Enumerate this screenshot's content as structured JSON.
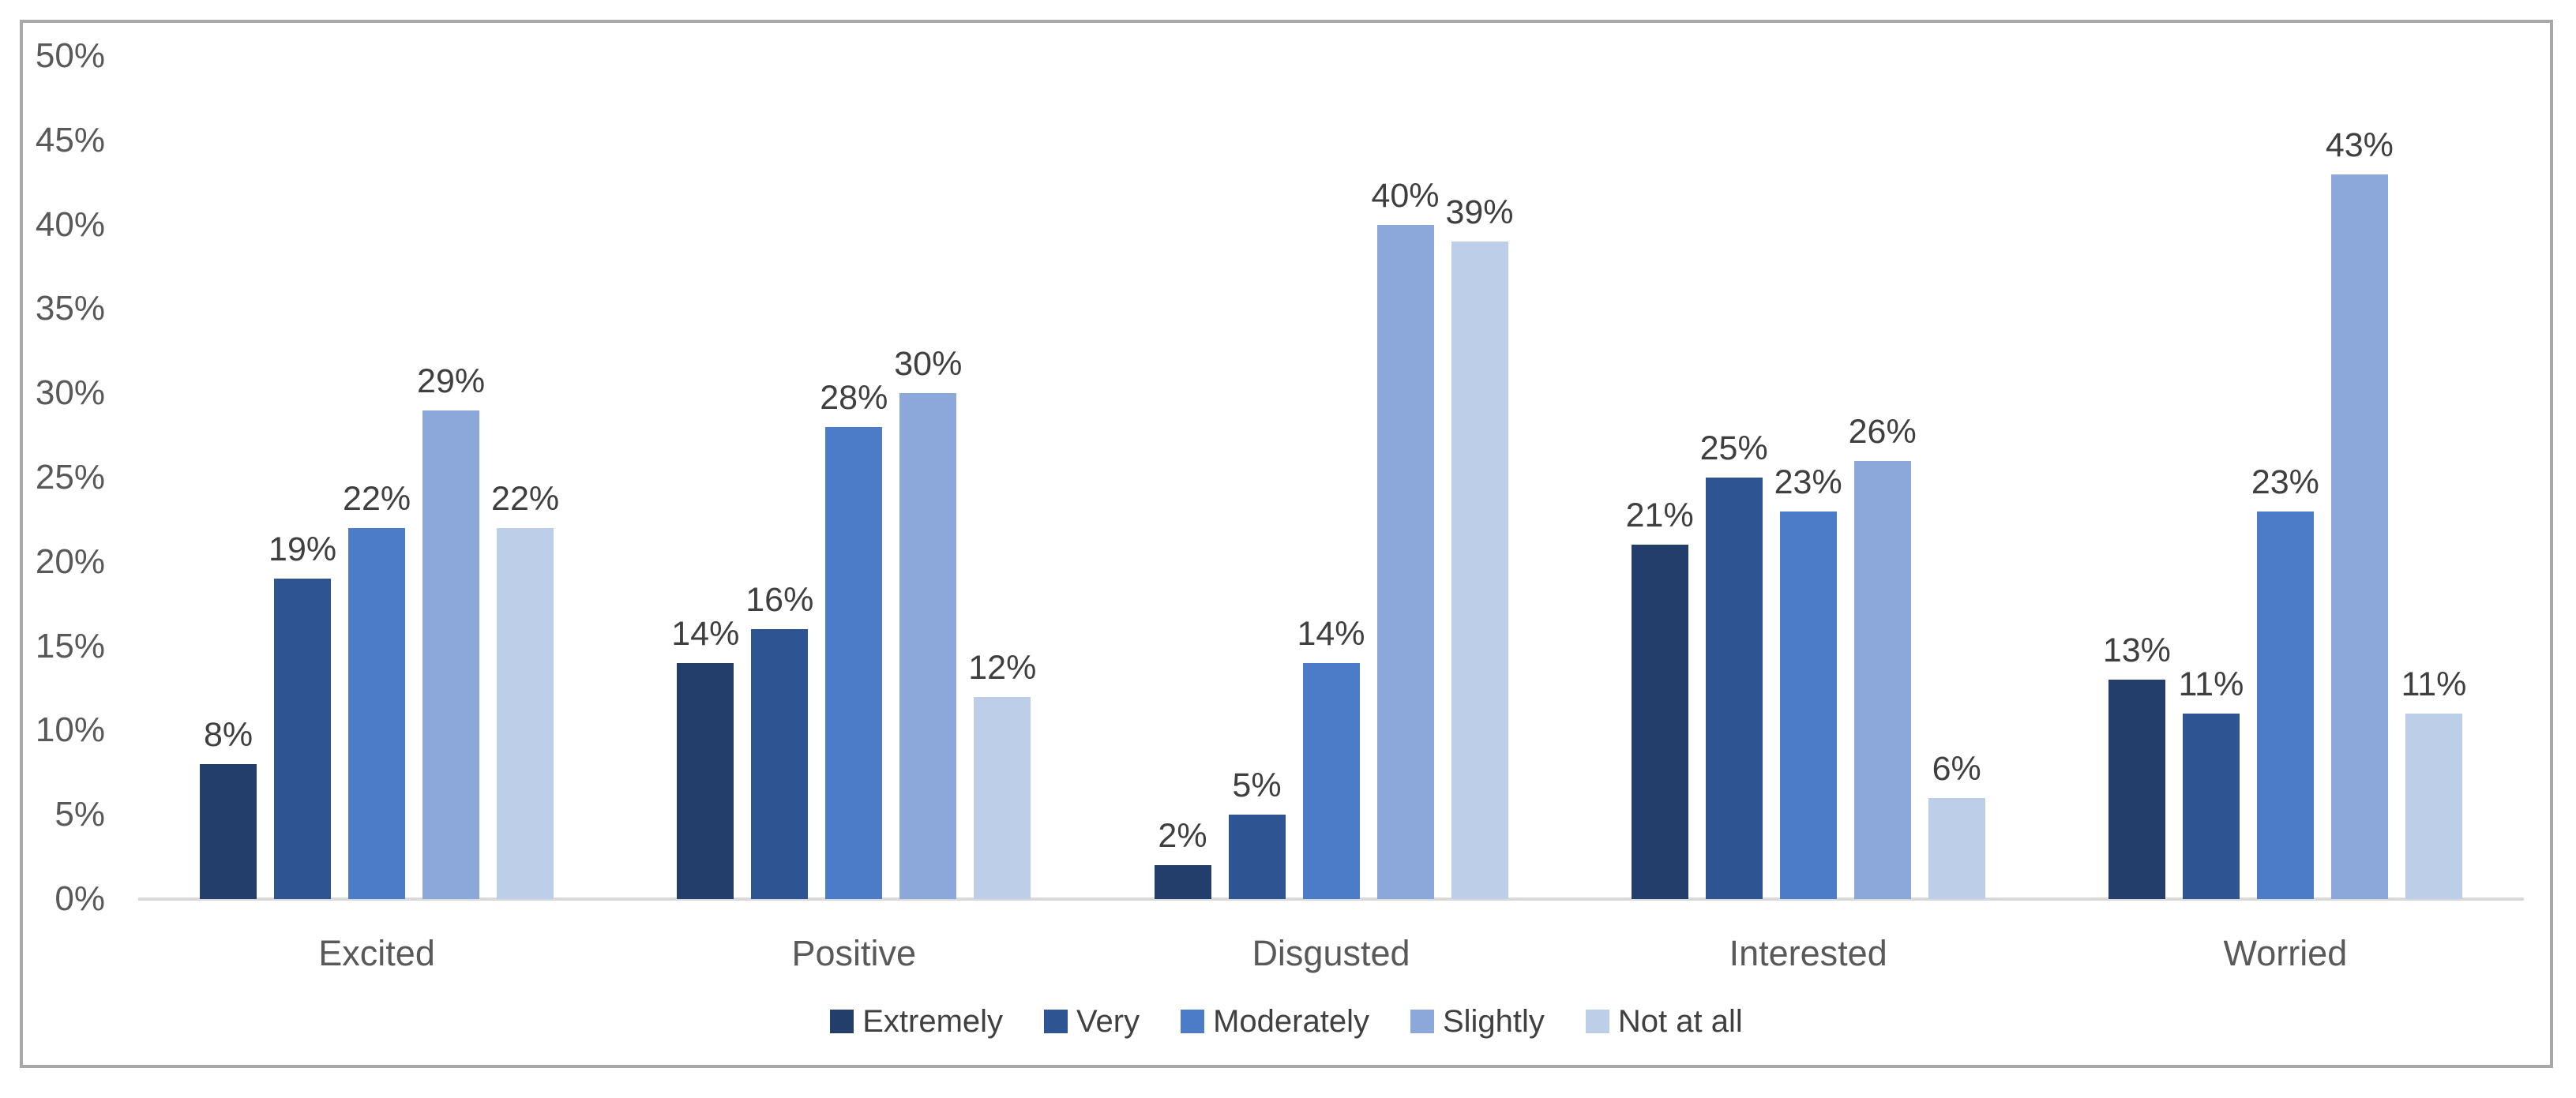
{
  "chart_data": {
    "type": "bar",
    "title": "",
    "categories": [
      "Excited",
      "Positive",
      "Disgusted",
      "Interested",
      "Worried"
    ],
    "series": [
      {
        "name": "Extremely",
        "color": "#243E6B",
        "values": [
          8,
          14,
          2,
          21,
          13
        ]
      },
      {
        "name": "Very",
        "color": "#2F5492",
        "values": [
          19,
          16,
          5,
          25,
          11
        ]
      },
      {
        "name": "Moderately",
        "color": "#4C7BC7",
        "values": [
          22,
          28,
          14,
          23,
          23
        ]
      },
      {
        "name": "Slightly",
        "color": "#8CA7DA",
        "values": [
          29,
          30,
          40,
          26,
          43
        ]
      },
      {
        "name": "Not at all",
        "color": "#BDCEE9",
        "values": [
          22,
          12,
          39,
          6,
          11
        ]
      }
    ],
    "value_suffix": "%",
    "ylabel": "",
    "xlabel": "",
    "ylim": [
      0,
      50
    ],
    "ytick_step": 5,
    "yticks": [
      "0%",
      "5%",
      "10%",
      "15%",
      "20%",
      "25%",
      "30%",
      "35%",
      "40%",
      "45%",
      "50%"
    ],
    "grid": false,
    "data_labels": true,
    "legend_position": "bottom"
  },
  "style": {
    "background": "#FFFFFF",
    "frame_border_color": "#A8A8A8",
    "axis_line_color": "#D9D9D9",
    "tick_text_color": "#595959",
    "category_text_color": "#595959",
    "data_label_color": "#3F3F3F",
    "legend_text_color": "#404040"
  }
}
